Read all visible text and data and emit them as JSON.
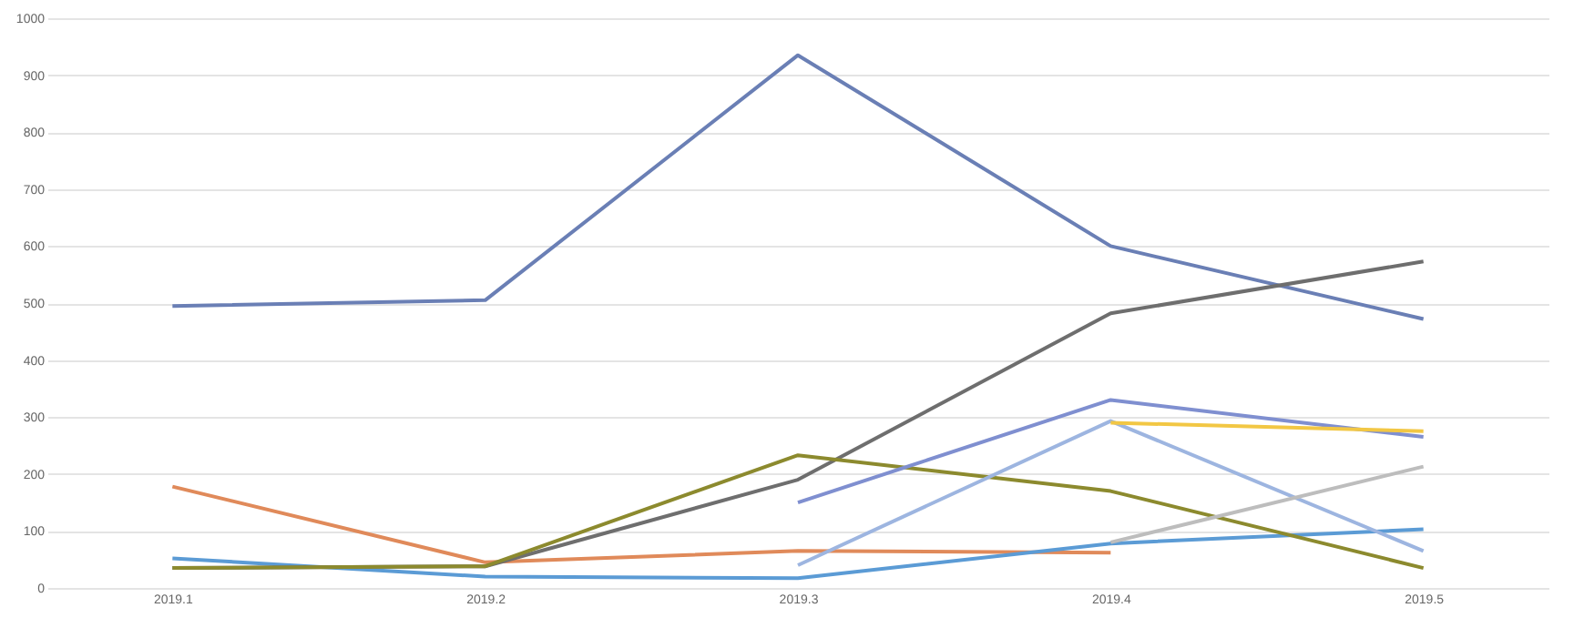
{
  "chart_data": {
    "type": "line",
    "categories": [
      "2019.1",
      "2019.2",
      "2019.3",
      "2019.4",
      "2019.5"
    ],
    "series": [
      {
        "color": "#6a7fb5",
        "values": [
          495,
          505,
          935,
          600,
          472
        ]
      },
      {
        "color": "#e08a5a",
        "values": [
          178,
          45,
          65,
          62,
          null
        ]
      },
      {
        "color": "#5b9bd5",
        "values": [
          52,
          20,
          17,
          78,
          103
        ]
      },
      {
        "color": "#6e6e6e",
        "values": [
          35,
          38,
          190,
          482,
          573
        ]
      },
      {
        "color": "#8c8a2e",
        "values": [
          35,
          38,
          233,
          170,
          35
        ]
      },
      {
        "color": "#7f8fd0",
        "values": [
          null,
          null,
          150,
          330,
          265
        ]
      },
      {
        "color": "#9db5e0",
        "values": [
          null,
          null,
          40,
          293,
          65
        ]
      },
      {
        "color": "#f2c744",
        "values": [
          null,
          null,
          null,
          290,
          275
        ]
      },
      {
        "color": "#bdbdbd",
        "values": [
          null,
          null,
          null,
          80,
          213
        ]
      }
    ],
    "ylim": [
      0,
      1000
    ],
    "yticks": [
      0,
      100,
      200,
      300,
      400,
      500,
      600,
      700,
      800,
      900,
      1000
    ],
    "grid": "y",
    "legend": false,
    "marker": "none",
    "line_style": "solid"
  }
}
